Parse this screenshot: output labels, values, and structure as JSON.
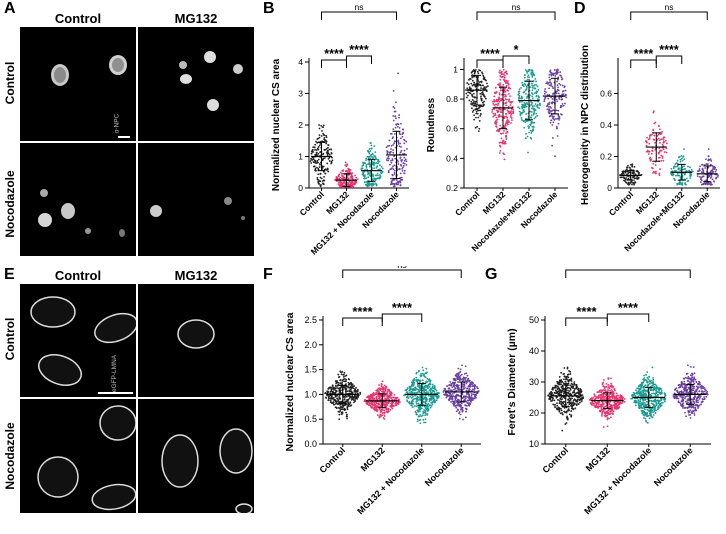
{
  "figure": {
    "panel_letters": [
      "A",
      "B",
      "C",
      "D",
      "E",
      "F",
      "G"
    ],
    "panel_A": {
      "col_titles": [
        "Control",
        "MG132"
      ],
      "row_titles": [
        "Control",
        "Nocodazole"
      ],
      "stain": "α-NPC"
    },
    "panel_E": {
      "col_titles": [
        "Control",
        "MG132"
      ],
      "row_titles": [
        "Control",
        "Nocodazole"
      ],
      "stain": "eGFP-LMNA"
    }
  },
  "colors": {
    "control": "#222222",
    "mg132": "#e8336f",
    "mg132_noco": "#1a9a92",
    "nocodazole": "#6a3fa3"
  },
  "chart_data": [
    {
      "id": "B",
      "type": "scatter",
      "ylabel": "Normalized nuclear CS area",
      "ylim": [
        0,
        4
      ],
      "yticks": [
        0,
        1,
        2,
        3,
        4
      ],
      "categories": [
        "Control",
        "MG132",
        "MG132 + Nocodazole",
        "Nocodazole"
      ],
      "medians": [
        1.0,
        0.25,
        0.55,
        1.05
      ],
      "spread_low": [
        0.05,
        0.02,
        0.05,
        0.05
      ],
      "spread_high": [
        2.0,
        1.4,
        1.6,
        3.8
      ],
      "sd": [
        0.45,
        0.2,
        0.35,
        0.75
      ],
      "n": [
        180,
        200,
        180,
        180
      ],
      "sig": [
        {
          "a": 0,
          "b": 1,
          "label": "****"
        },
        {
          "a": 1,
          "b": 2,
          "label": "****"
        },
        {
          "a": 0,
          "b": 3,
          "label": "ns"
        }
      ]
    },
    {
      "id": "C",
      "type": "scatter",
      "ylabel": "Roundness",
      "ylim": [
        0.2,
        1.05
      ],
      "yticks": [
        0.2,
        0.4,
        0.6,
        0.8,
        1.0
      ],
      "categories": [
        "Control",
        "MG132",
        "Nocodazole+MG132",
        "Nocodazole"
      ],
      "medians": [
        0.86,
        0.74,
        0.79,
        0.82
      ],
      "spread_low": [
        0.38,
        0.28,
        0.28,
        0.4
      ],
      "spread_high": [
        1.0,
        1.0,
        1.0,
        1.0
      ],
      "sd": [
        0.1,
        0.14,
        0.13,
        0.12
      ],
      "n": [
        180,
        260,
        240,
        180
      ],
      "sig": [
        {
          "a": 0,
          "b": 1,
          "label": "****"
        },
        {
          "a": 1,
          "b": 2,
          "label": "*"
        },
        {
          "a": 0,
          "b": 3,
          "label": "ns"
        }
      ]
    },
    {
      "id": "D",
      "type": "scatter",
      "ylabel": "Heterogeneity in NPC distribution",
      "ylim": [
        0,
        0.8
      ],
      "yticks": [
        0.0,
        0.2,
        0.4,
        0.6
      ],
      "categories": [
        "Control",
        "MG132",
        "Nocodazole+MG132",
        "Nocodazole"
      ],
      "medians": [
        0.08,
        0.26,
        0.1,
        0.09
      ],
      "spread_low": [
        0.02,
        0.08,
        0.02,
        0.02
      ],
      "spread_high": [
        0.18,
        0.58,
        0.4,
        0.3
      ],
      "sd": [
        0.03,
        0.09,
        0.05,
        0.05
      ],
      "n": [
        110,
        110,
        110,
        110
      ],
      "sig": [
        {
          "a": 0,
          "b": 1,
          "label": "****"
        },
        {
          "a": 1,
          "b": 2,
          "label": "****"
        },
        {
          "a": 0,
          "b": 3,
          "label": "ns"
        }
      ]
    },
    {
      "id": "F",
      "type": "scatter",
      "ylabel": "Normalized nuclear CS area",
      "ylim": [
        0,
        2.5
      ],
      "yticks": [
        0.0,
        0.5,
        1.0,
        1.5,
        2.0,
        2.5
      ],
      "categories": [
        "Control",
        "MG132",
        "MG132 + Nocodazole",
        "Nocodazole"
      ],
      "medians": [
        1.0,
        0.87,
        1.0,
        1.05
      ],
      "spread_low": [
        0.35,
        0.35,
        0.25,
        0.45
      ],
      "spread_high": [
        1.75,
        1.55,
        2.4,
        2.0
      ],
      "sd": [
        0.18,
        0.14,
        0.22,
        0.2
      ],
      "n": [
        380,
        380,
        440,
        380
      ],
      "sig": [
        {
          "a": 0,
          "b": 1,
          "label": "****"
        },
        {
          "a": 1,
          "b": 2,
          "label": "****"
        },
        {
          "a": 0,
          "b": 3,
          "label": "ns"
        }
      ]
    },
    {
      "id": "G",
      "type": "scatter",
      "ylabel": "Feret's Diameter (µm)",
      "ylim": [
        10,
        50
      ],
      "yticks": [
        10,
        20,
        30,
        40,
        50
      ],
      "categories": [
        "Control",
        "MG132",
        "MG132 + Nocodazole",
        "Nocodazole"
      ],
      "medians": [
        25.5,
        24.0,
        25.0,
        26.0
      ],
      "spread_low": [
        14,
        15,
        15,
        15
      ],
      "spread_high": [
        44,
        37,
        48,
        39
      ],
      "sd": [
        3.5,
        2.5,
        3.2,
        3.2
      ],
      "n": [
        380,
        380,
        440,
        380
      ],
      "sig": [
        {
          "a": 0,
          "b": 1,
          "label": "****"
        },
        {
          "a": 1,
          "b": 2,
          "label": "****"
        },
        {
          "a": 0,
          "b": 3,
          "label": "*"
        }
      ]
    }
  ]
}
